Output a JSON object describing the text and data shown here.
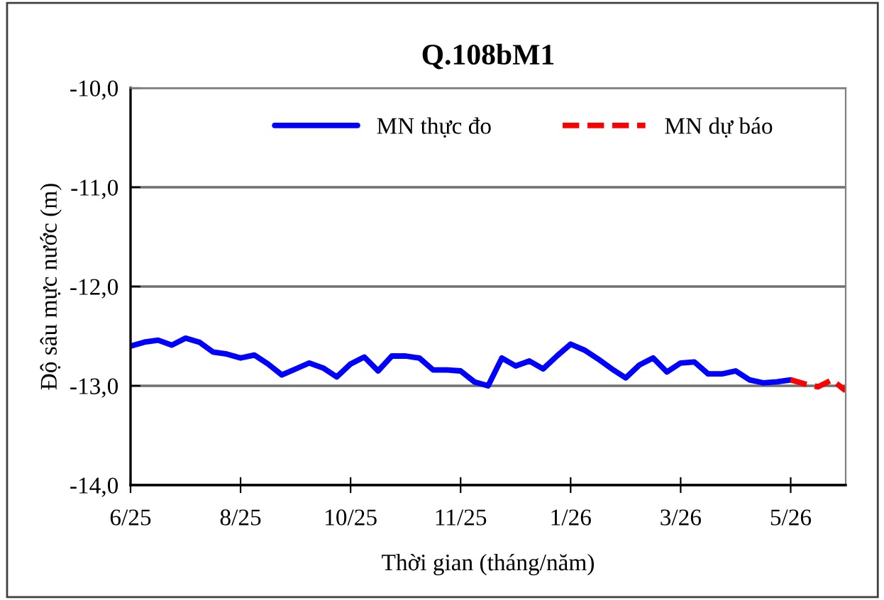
{
  "chart_data": {
    "type": "line",
    "title": "Q.108bM1",
    "xlabel": "Thời gian (tháng/năm)",
    "ylabel": "Độ sâu mực nước (m)",
    "categories": [
      "6/25",
      null,
      null,
      null,
      null,
      null,
      null,
      null,
      "8/25",
      null,
      null,
      null,
      null,
      null,
      null,
      null,
      "10/25",
      null,
      null,
      null,
      null,
      null,
      null,
      null,
      "11/25",
      null,
      null,
      null,
      null,
      null,
      null,
      null,
      "1/26",
      null,
      null,
      null,
      null,
      null,
      null,
      null,
      "3/26",
      null,
      null,
      null,
      null,
      null,
      null,
      null,
      "5/26",
      null,
      null,
      null,
      null
    ],
    "series": [
      {
        "name": "MN thực đo",
        "color": "#0000ff",
        "line_style": "solid",
        "values": [
          -12.6,
          -12.56,
          -12.54,
          -12.59,
          -12.52,
          -12.56,
          -12.66,
          -12.68,
          -12.72,
          -12.69,
          -12.78,
          -12.89,
          -12.83,
          -12.77,
          -12.82,
          -12.91,
          -12.78,
          -12.71,
          -12.85,
          -12.7,
          -12.7,
          -12.72,
          -12.84,
          -12.84,
          -12.85,
          -12.96,
          -13.0,
          -12.72,
          -12.8,
          -12.75,
          -12.83,
          -12.7,
          -12.58,
          -12.64,
          -12.73,
          -12.83,
          -12.92,
          -12.79,
          -12.72,
          -12.86,
          -12.77,
          -12.76,
          -12.88,
          -12.88,
          -12.85,
          -12.94,
          -12.97,
          -12.96,
          -12.94,
          null,
          null,
          null,
          null
        ]
      },
      {
        "name": "MN dự báo",
        "color": "#ff0000",
        "line_style": "dashed",
        "values": [
          null,
          null,
          null,
          null,
          null,
          null,
          null,
          null,
          null,
          null,
          null,
          null,
          null,
          null,
          null,
          null,
          null,
          null,
          null,
          null,
          null,
          null,
          null,
          null,
          null,
          null,
          null,
          null,
          null,
          null,
          null,
          null,
          null,
          null,
          null,
          null,
          null,
          null,
          null,
          null,
          null,
          null,
          null,
          null,
          null,
          null,
          null,
          null,
          -12.94,
          -12.98,
          -13.01,
          -12.94,
          -13.05
        ]
      }
    ],
    "ylim": [
      -14,
      -10
    ],
    "yticks": [
      {
        "value": -14,
        "label": "-14,0"
      },
      {
        "value": -13,
        "label": "-13,0"
      },
      {
        "value": -12,
        "label": "-12,0"
      },
      {
        "value": -11,
        "label": "-11,0"
      },
      {
        "value": -10,
        "label": "-10,0"
      }
    ],
    "grid": "y",
    "legend": "top",
    "marker": "none"
  }
}
